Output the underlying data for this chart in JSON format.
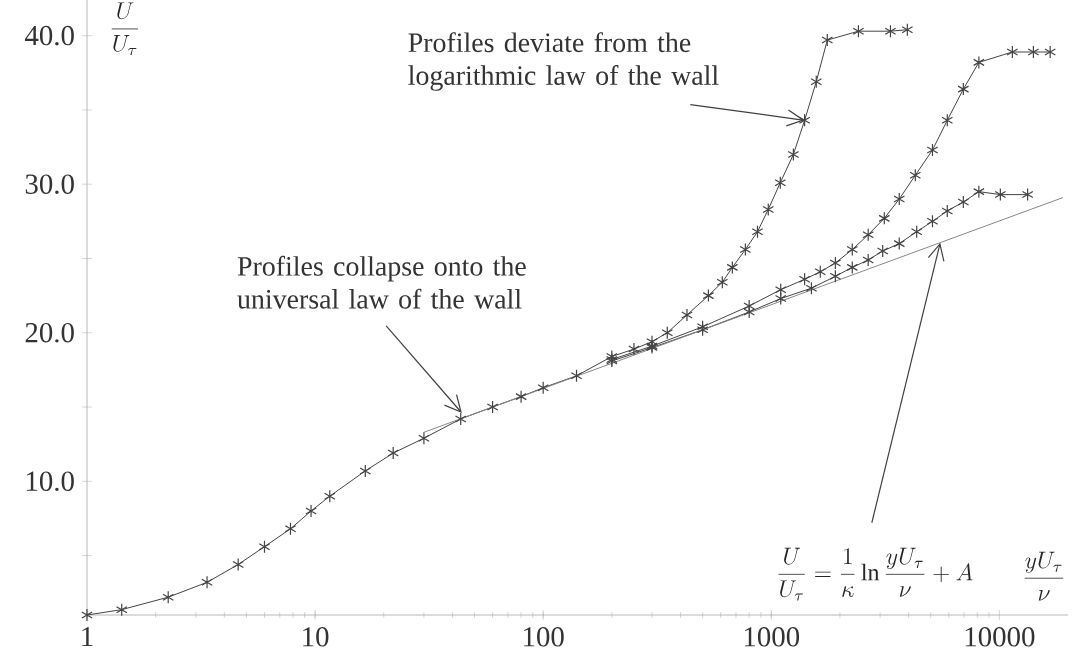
{
  "chart_data": {
    "type": "line",
    "marker": "cross",
    "log": "x",
    "xlabel": "\\frac{yU_\\tau}{\\nu}",
    "ylabel": "\\frac{U}{U_\\tau}",
    "xlim": [
      1,
      20000
    ],
    "ylim": [
      1,
      42.4
    ],
    "xticks": [
      1,
      10,
      100,
      1000,
      10000
    ],
    "yticks": [
      {
        "value": 5,
        "label": null
      },
      {
        "value": 10,
        "label": "10.0"
      },
      {
        "value": 15,
        "label": null
      },
      {
        "value": 20,
        "label": "20.0"
      },
      {
        "value": 25,
        "label": null
      },
      {
        "value": 30,
        "label": "30.0"
      },
      {
        "value": 35,
        "label": null
      },
      {
        "value": 40,
        "label": "40.0"
      }
    ],
    "series": [
      {
        "color": "#444444",
        "x": [
          1,
          1.42,
          2.27,
          3.36,
          4.6,
          6.0,
          7.8,
          9.6,
          11.6,
          16.6,
          22,
          30,
          43.5,
          60,
          80,
          100,
          140,
          200,
          250,
          300,
          350,
          427,
          530,
          610,
          675,
          770,
          870,
          970,
          1095,
          1250,
          1400,
          1575,
          1760,
          2410,
          3330,
          3950
        ],
        "values": [
          1,
          1.36,
          2.2,
          3.2,
          4.4,
          5.6,
          6.8,
          8.0,
          9.0,
          10.7,
          11.9,
          12.9,
          14.2,
          15.0,
          15.7,
          16.3,
          17.1,
          18.4,
          18.9,
          19.4,
          20.0,
          21.2,
          22.5,
          23.4,
          24.4,
          25.6,
          26.8,
          28.3,
          30.1,
          32.0,
          34.3,
          36.9,
          39.7,
          40.3,
          40.3,
          40.4
        ]
      },
      {
        "color": "#444444",
        "x": [
          200,
          300,
          500,
          800,
          1100,
          1400,
          1640,
          1910,
          2265,
          2660,
          3130,
          3640,
          4280,
          5090,
          5910,
          6950,
          8130,
          11400,
          14100,
          16700
        ],
        "values": [
          18.2,
          19.1,
          20.4,
          21.8,
          22.9,
          23.6,
          24.1,
          24.7,
          25.6,
          26.6,
          27.7,
          29.0,
          30.6,
          32.3,
          34.3,
          36.4,
          38.2,
          38.9,
          38.9,
          38.9
        ]
      },
      {
        "color": "#444444",
        "x": [
          200,
          300,
          500,
          800,
          1100,
          1500,
          1910,
          2265,
          2660,
          3080,
          3640,
          4340,
          5090,
          5910,
          6950,
          8130,
          10100,
          13300
        ],
        "values": [
          18.1,
          19.0,
          20.2,
          21.4,
          22.3,
          23.0,
          23.8,
          24.4,
          24.9,
          25.5,
          26.0,
          26.8,
          27.5,
          28.2,
          28.8,
          29.5,
          29.3,
          29.3
        ]
      },
      {
        "name": "\\frac{U}{U_\\tau} = \\frac{1}{\\kappa}\\ln\\frac{yU_\\tau}{\\nu} + A",
        "color": "#888888",
        "marker": "none",
        "x": [
          30,
          19000
        ],
        "values": [
          13.3,
          29.1
        ]
      }
    ],
    "annotations": [
      {
        "text": "Profiles deviate from the logarithmic law of the wall",
        "x": 1400,
        "y": 34.3
      },
      {
        "text": "Profiles collapse onto the universal law of the wall",
        "x": 44,
        "y": 14.6
      }
    ]
  }
}
